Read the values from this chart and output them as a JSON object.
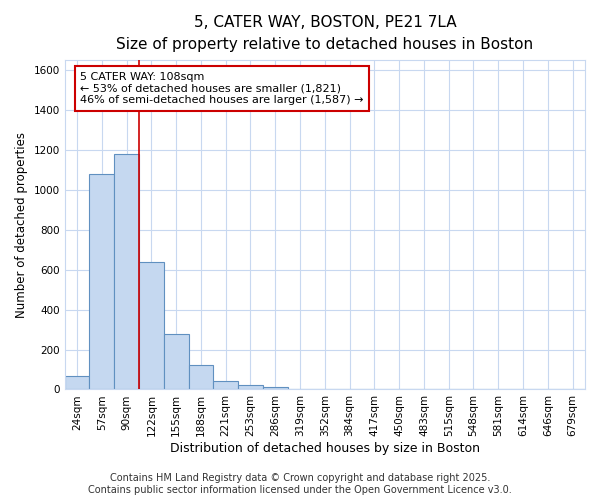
{
  "title": "5, CATER WAY, BOSTON, PE21 7LA",
  "subtitle": "Size of property relative to detached houses in Boston",
  "xlabel": "Distribution of detached houses by size in Boston",
  "ylabel": "Number of detached properties",
  "categories": [
    "24sqm",
    "57sqm",
    "90sqm",
    "122sqm",
    "155sqm",
    "188sqm",
    "221sqm",
    "253sqm",
    "286sqm",
    "319sqm",
    "352sqm",
    "384sqm",
    "417sqm",
    "450sqm",
    "483sqm",
    "515sqm",
    "548sqm",
    "581sqm",
    "614sqm",
    "646sqm",
    "679sqm"
  ],
  "values": [
    65,
    1080,
    1180,
    640,
    280,
    125,
    40,
    20,
    10,
    0,
    0,
    0,
    0,
    0,
    0,
    0,
    0,
    0,
    0,
    0,
    0
  ],
  "bar_color": "#c5d8f0",
  "bar_edge_color": "#6090c0",
  "vline_x_idx": 2.5,
  "vline_color": "#cc0000",
  "annotation_box_text": "5 CATER WAY: 108sqm\n← 53% of detached houses are smaller (1,821)\n46% of semi-detached houses are larger (1,587) →",
  "annotation_box_color": "#ffffff",
  "annotation_box_edge_color": "#cc0000",
  "ylim": [
    0,
    1650
  ],
  "yticks": [
    0,
    200,
    400,
    600,
    800,
    1000,
    1200,
    1400,
    1600
  ],
  "fig_bg_color": "#ffffff",
  "ax_bg_color": "#ffffff",
  "grid_color": "#c8d8f0",
  "footnote": "Contains HM Land Registry data © Crown copyright and database right 2025.\nContains public sector information licensed under the Open Government Licence v3.0.",
  "title_fontsize": 11,
  "subtitle_fontsize": 9.5,
  "xlabel_fontsize": 9,
  "ylabel_fontsize": 8.5,
  "tick_fontsize": 7.5,
  "annotation_fontsize": 8,
  "footnote_fontsize": 7
}
